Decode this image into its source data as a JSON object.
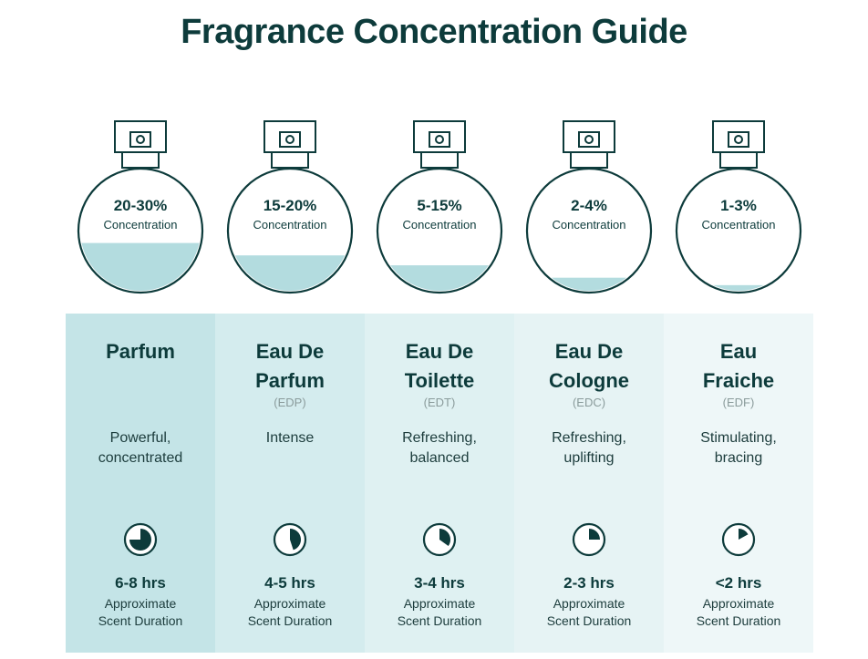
{
  "title": "Fragrance Concentration Guide",
  "colors": {
    "dark": "#0d3b3b",
    "liquid": "#b3dcdf",
    "panel_strong": "#c6e5e8",
    "panel_light": "#eef7f8"
  },
  "types": [
    {
      "percent": "20-30%",
      "concentration_label": "Concentration",
      "name_line1": "Parfum",
      "name_line2": "",
      "abbr": "",
      "desc_line1": "Powerful,",
      "desc_line2": "concentrated",
      "duration": "6-8 hrs",
      "duration_label_1": "Approximate",
      "duration_label_2": "Scent Duration",
      "fill_level": 0.4,
      "clock_fraction": 0.75,
      "icon": "clock-icon"
    },
    {
      "percent": "15-20%",
      "concentration_label": "Concentration",
      "name_line1": "Eau De",
      "name_line2": "Parfum",
      "abbr": "(EDP)",
      "desc_line1": "Intense",
      "desc_line2": "",
      "duration": "4-5 hrs",
      "duration_label_1": "Approximate",
      "duration_label_2": "Scent Duration",
      "fill_level": 0.3,
      "clock_fraction": 0.45,
      "icon": "clock-icon"
    },
    {
      "percent": "5-15%",
      "concentration_label": "Concentration",
      "name_line1": "Eau De",
      "name_line2": "Toilette",
      "abbr": "(EDT)",
      "desc_line1": "Refreshing,",
      "desc_line2": "balanced",
      "duration": "3-4 hrs",
      "duration_label_1": "Approximate",
      "duration_label_2": "Scent Duration",
      "fill_level": 0.22,
      "clock_fraction": 0.35,
      "icon": "clock-icon"
    },
    {
      "percent": "2-4%",
      "concentration_label": "Concentration",
      "name_line1": "Eau De",
      "name_line2": "Cologne",
      "abbr": "(EDC)",
      "desc_line1": "Refreshing,",
      "desc_line2": "uplifting",
      "duration": "2-3 hrs",
      "duration_label_1": "Approximate",
      "duration_label_2": "Scent Duration",
      "fill_level": 0.12,
      "clock_fraction": 0.25,
      "icon": "clock-icon"
    },
    {
      "percent": "1-3%",
      "concentration_label": "Concentration",
      "name_line1": "Eau",
      "name_line2": "Fraiche",
      "abbr": "(EDF)",
      "desc_line1": "Stimulating,",
      "desc_line2": "bracing",
      "duration": "<2 hrs",
      "duration_label_1": "Approximate",
      "duration_label_2": "Scent Duration",
      "fill_level": 0.06,
      "clock_fraction": 0.17,
      "icon": "clock-icon"
    }
  ]
}
